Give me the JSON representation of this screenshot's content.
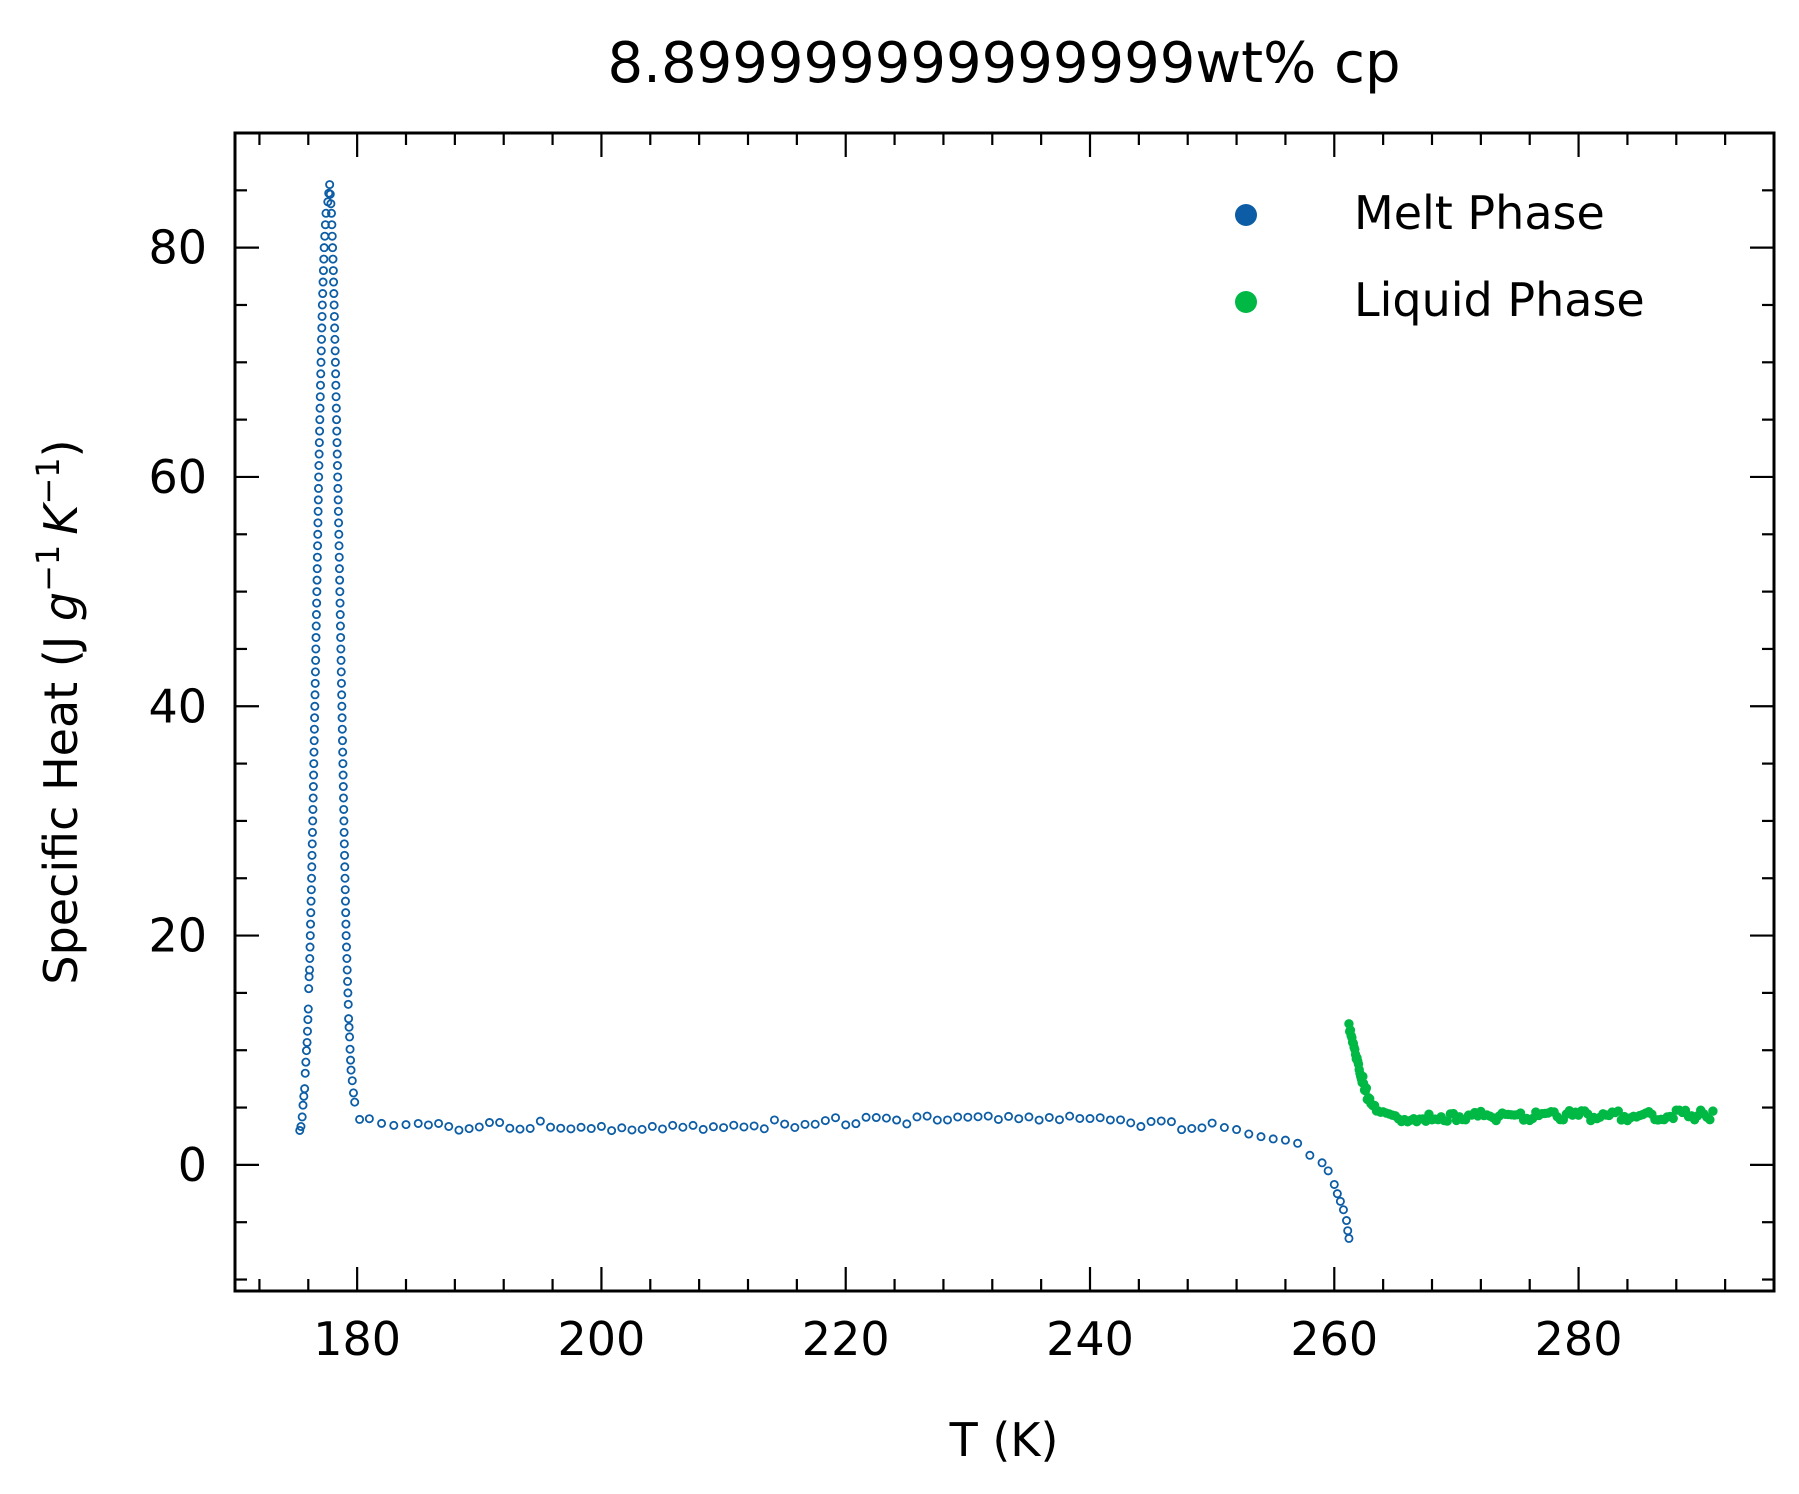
{
  "chart_data": {
    "type": "scatter",
    "title": "8.899999999999999wt% cp",
    "xlabel": "T (K)",
    "ylabel_main": "Specific Heat (J ",
    "ylabel_g": "g",
    "ylabel_exp1": "−1",
    "ylabel_k": "K",
    "ylabel_exp2": "−1",
    "ylabel_close": ")",
    "xlim": [
      170,
      296
    ],
    "ylim": [
      -11,
      90
    ],
    "xticks": [
      180,
      200,
      220,
      240,
      260,
      280
    ],
    "yticks": [
      0,
      20,
      40,
      60,
      80
    ],
    "xtick_labels": [
      "180",
      "200",
      "220",
      "240",
      "260",
      "280"
    ],
    "ytick_labels": [
      "0",
      "20",
      "40",
      "60",
      "80"
    ],
    "legend_position": "top-right",
    "series": [
      {
        "name": "Melt Phase",
        "color": "#0c5da5",
        "marker": "open-circle",
        "x": [
          175.3,
          175.5,
          175.7,
          175.9,
          176.1,
          176.25,
          176.4,
          176.55,
          176.7,
          176.85,
          177.0,
          177.15,
          177.3,
          177.45,
          177.6,
          177.75,
          177.9,
          178.05,
          178.2,
          178.35,
          178.5,
          178.65,
          178.8,
          178.95,
          179.1,
          179.3,
          179.5,
          179.8,
          180.2,
          181,
          182,
          185,
          190,
          195,
          200,
          205,
          210,
          215,
          220,
          225,
          230,
          235,
          240,
          245,
          250,
          253,
          255,
          257,
          258,
          259,
          259.5,
          260,
          260.5,
          261,
          261.2
        ],
        "y": [
          3.0,
          4.5,
          7.0,
          11.0,
          17.0,
          24.0,
          32.0,
          41.0,
          50.0,
          60.0,
          68.0,
          75.0,
          80.0,
          83.0,
          84.0,
          85.5,
          83.0,
          78.0,
          71.0,
          63.0,
          55.0,
          46.0,
          37.0,
          28.0,
          20.0,
          13.0,
          8.5,
          5.5,
          4.2,
          3.6,
          3.4,
          3.3,
          3.3,
          3.4,
          3.4,
          3.5,
          3.5,
          3.6,
          3.7,
          3.8,
          3.9,
          3.9,
          3.9,
          3.7,
          3.3,
          3.0,
          2.6,
          2.0,
          1.2,
          0.3,
          -0.5,
          -1.8,
          -3.3,
          -5.0,
          -6.5
        ]
      },
      {
        "name": "Liquid Phase",
        "color": "#00b945",
        "marker": "filled-circle",
        "x": [
          261.2,
          261.5,
          261.8,
          262.1,
          262.4,
          262.7,
          263.0,
          263.3,
          263.6,
          264.0,
          264.5,
          265,
          266,
          268,
          270,
          273,
          276,
          279,
          282,
          285,
          288,
          290,
          291
        ],
        "y": [
          12.3,
          11.0,
          9.6,
          8.3,
          7.1,
          6.1,
          5.3,
          4.8,
          4.5,
          4.3,
          4.2,
          4.15,
          4.15,
          4.2,
          4.2,
          4.25,
          4.3,
          4.3,
          4.3,
          4.3,
          4.35,
          4.35,
          4.35
        ]
      }
    ]
  }
}
